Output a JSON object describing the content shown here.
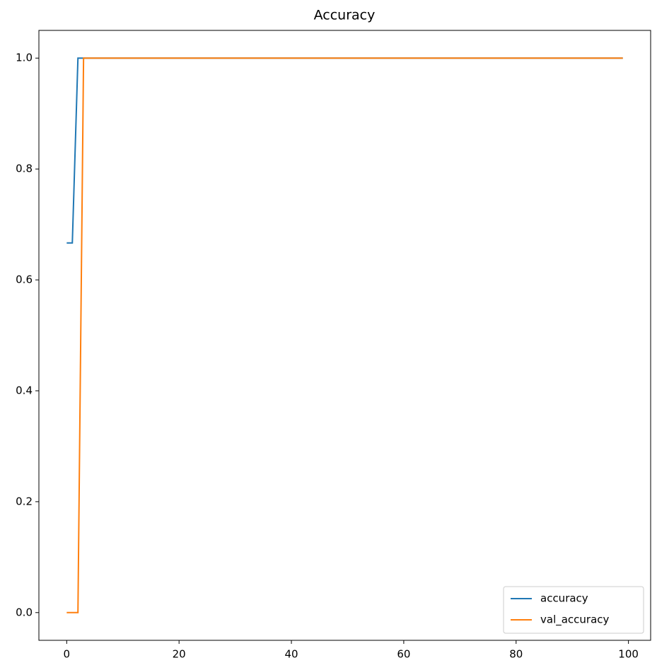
{
  "chart_data": {
    "type": "line",
    "title": "Accuracy",
    "x": [
      0,
      1,
      2,
      3,
      4,
      5,
      6,
      7,
      8,
      9,
      10,
      11,
      12,
      13,
      14,
      15,
      16,
      17,
      18,
      19,
      20,
      21,
      22,
      23,
      24,
      25,
      26,
      27,
      28,
      29,
      30,
      31,
      32,
      33,
      34,
      35,
      36,
      37,
      38,
      39,
      40,
      41,
      42,
      43,
      44,
      45,
      46,
      47,
      48,
      49,
      50,
      51,
      52,
      53,
      54,
      55,
      56,
      57,
      58,
      59,
      60,
      61,
      62,
      63,
      64,
      65,
      66,
      67,
      68,
      69,
      70,
      71,
      72,
      73,
      74,
      75,
      76,
      77,
      78,
      79,
      80,
      81,
      82,
      83,
      84,
      85,
      86,
      87,
      88,
      89,
      90,
      91,
      92,
      93,
      94,
      95,
      96,
      97,
      98,
      99
    ],
    "series": [
      {
        "name": "accuracy",
        "color": "#1f77b4",
        "values": [
          0.6667,
          0.6667,
          1,
          1,
          1,
          1,
          1,
          1,
          1,
          1,
          1,
          1,
          1,
          1,
          1,
          1,
          1,
          1,
          1,
          1,
          1,
          1,
          1,
          1,
          1,
          1,
          1,
          1,
          1,
          1,
          1,
          1,
          1,
          1,
          1,
          1,
          1,
          1,
          1,
          1,
          1,
          1,
          1,
          1,
          1,
          1,
          1,
          1,
          1,
          1,
          1,
          1,
          1,
          1,
          1,
          1,
          1,
          1,
          1,
          1,
          1,
          1,
          1,
          1,
          1,
          1,
          1,
          1,
          1,
          1,
          1,
          1,
          1,
          1,
          1,
          1,
          1,
          1,
          1,
          1,
          1,
          1,
          1,
          1,
          1,
          1,
          1,
          1,
          1,
          1,
          1,
          1,
          1,
          1,
          1,
          1,
          1,
          1,
          1,
          1
        ]
      },
      {
        "name": "val_accuracy",
        "color": "#ff7f0e",
        "values": [
          0,
          0,
          0,
          1,
          1,
          1,
          1,
          1,
          1,
          1,
          1,
          1,
          1,
          1,
          1,
          1,
          1,
          1,
          1,
          1,
          1,
          1,
          1,
          1,
          1,
          1,
          1,
          1,
          1,
          1,
          1,
          1,
          1,
          1,
          1,
          1,
          1,
          1,
          1,
          1,
          1,
          1,
          1,
          1,
          1,
          1,
          1,
          1,
          1,
          1,
          1,
          1,
          1,
          1,
          1,
          1,
          1,
          1,
          1,
          1,
          1,
          1,
          1,
          1,
          1,
          1,
          1,
          1,
          1,
          1,
          1,
          1,
          1,
          1,
          1,
          1,
          1,
          1,
          1,
          1,
          1,
          1,
          1,
          1,
          1,
          1,
          1,
          1,
          1,
          1,
          1,
          1,
          1,
          1,
          1,
          1,
          1,
          1,
          1,
          1
        ]
      }
    ],
    "xlim": [
      -4.95,
      103.95
    ],
    "xticks": [
      0,
      20,
      40,
      60,
      80,
      100
    ],
    "ylim": [
      -0.05,
      1.05
    ],
    "yticks": [
      {
        "value": 0,
        "label": "0.0"
      },
      0.2,
      0.4,
      0.6,
      0.8,
      {
        "value": 1,
        "label": "1.0"
      }
    ],
    "legend": "lower right"
  }
}
